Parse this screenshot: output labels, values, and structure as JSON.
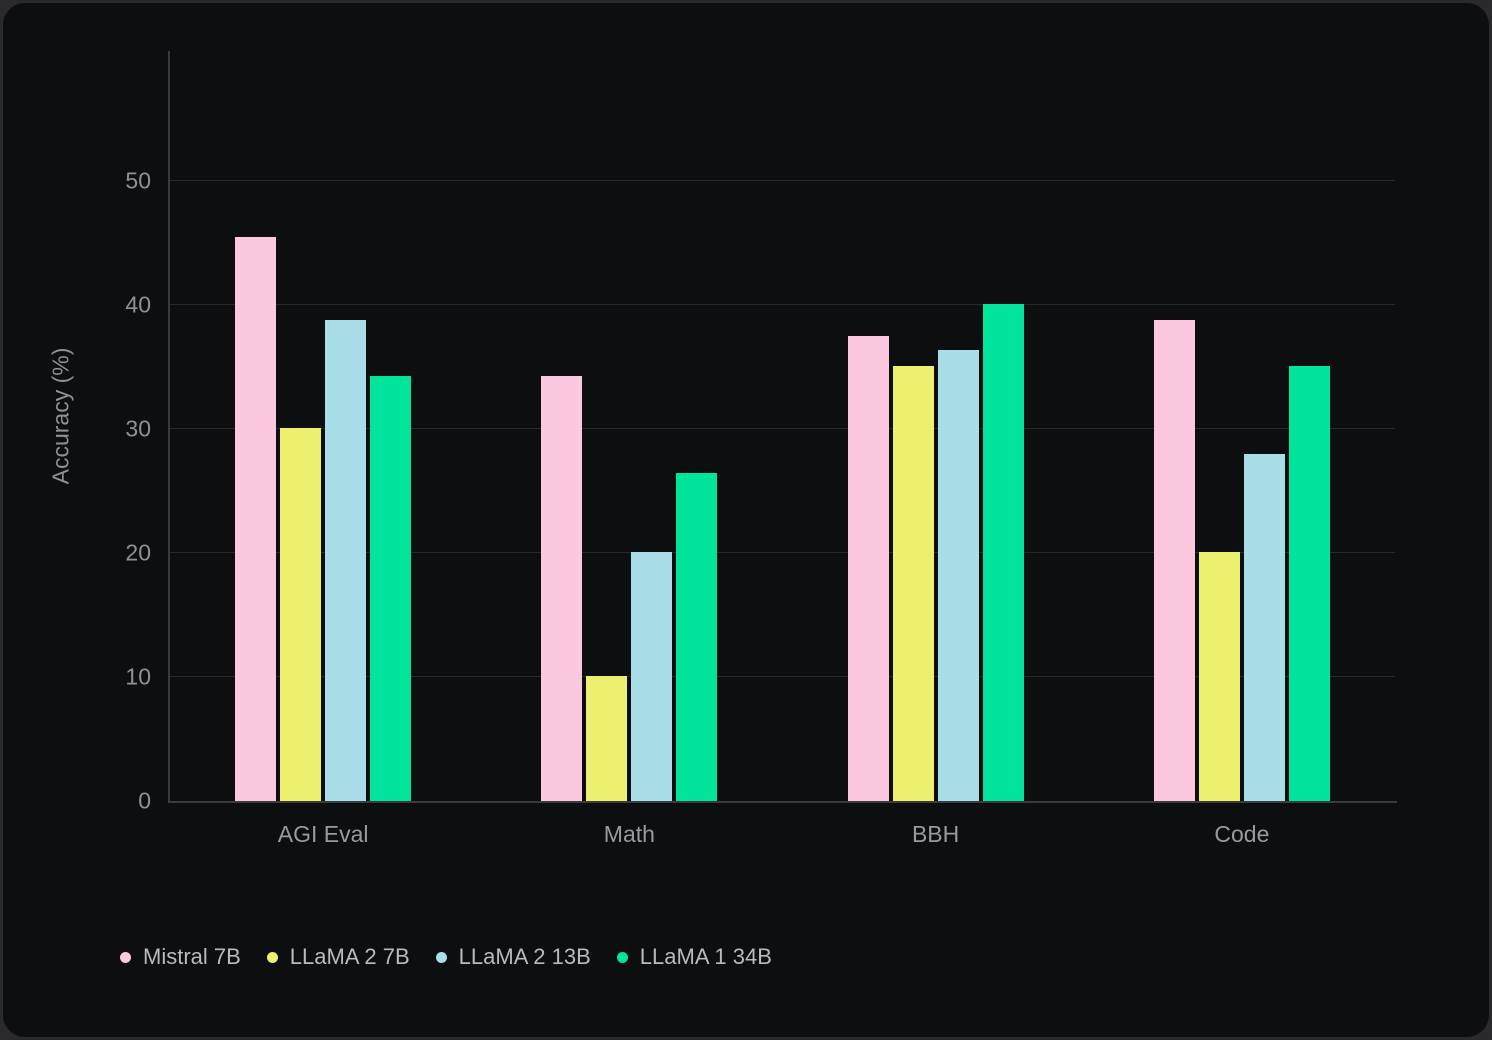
{
  "chart_data": {
    "type": "bar",
    "title": "",
    "xlabel": "",
    "ylabel": "Accuracy (%)",
    "categories": [
      "AGI Eval",
      "Math",
      "BBH",
      "Code"
    ],
    "series": [
      {
        "name": "Mistral 7B",
        "color": "#fcc8df",
        "values": [
          45.5,
          34.3,
          37.5,
          38.8
        ]
      },
      {
        "name": "LLaMA 2 7B",
        "color": "#edf06f",
        "values": [
          30.1,
          10.1,
          35.1,
          20.1
        ]
      },
      {
        "name": "LLaMA 2 13B",
        "color": "#a9dee9",
        "values": [
          38.8,
          20.1,
          36.4,
          28.0
        ]
      },
      {
        "name": "LLaMA 1 34B",
        "color": "#01e49b",
        "values": [
          34.3,
          26.5,
          40.1,
          35.1
        ]
      }
    ],
    "y_ticks": [
      0,
      10,
      20,
      30,
      40,
      50
    ],
    "ylim": [
      0,
      60.5
    ],
    "grid": true,
    "legend_position": "bottom-left"
  },
  "colors": {
    "bg": "#2a2a2c",
    "card": "#0d0e10",
    "grid": "#27282a",
    "axis": "#3a3b3f",
    "tick": "#8f9196",
    "cat": "#989aa0",
    "legend": "#b8bac0"
  }
}
